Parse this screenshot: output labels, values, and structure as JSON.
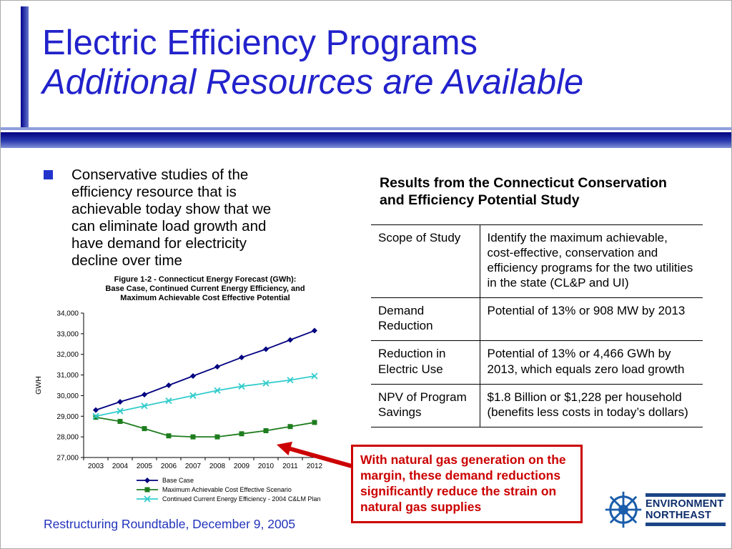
{
  "slide": {
    "title_line1": "Electric Efficiency Programs",
    "title_line2": "Additional Resources are Available",
    "bullet_text": "Conservative studies of the efficiency resource that is achievable today show that we can eliminate load growth and have demand for electricity decline over time",
    "footer": "Restructuring Roundtable, December 9, 2005"
  },
  "results_table": {
    "heading": "Results from the Connecticut Conservation and Efficiency Potential Study",
    "rows": [
      {
        "label": "Scope of Study",
        "value": "Identify the maximum achievable, cost-effective, conservation and efficiency programs for the two utilities in the state (CL&P and UI)"
      },
      {
        "label": "Demand Reduction",
        "value": "Potential of 13% or 908 MW by 2013"
      },
      {
        "label": "Reduction in Electric Use",
        "value": "Potential of 13% or 4,466 GWh by 2013, which equals zero load growth"
      },
      {
        "label": "NPV of Program Savings",
        "value": "$1.8 Billion or $1,228 per household (benefits less costs in today’s dollars)"
      }
    ]
  },
  "callout": {
    "text": "With natural gas generation on the margin, these demand reductions significantly reduce the strain on natural gas supplies"
  },
  "logo": {
    "line1": "ENVIRONMENT",
    "line2": "NORTHEAST"
  },
  "colors": {
    "title_blue": "#2222cc",
    "accent_red": "#cc0000",
    "footer_blue": "#2233bb",
    "logo_navy": "#0d2d6b"
  },
  "chart_data": {
    "type": "line",
    "title": "Figure 1-2 - Connecticut Energy Forecast (GWh): Base Case, Continued Current Energy Efficiency, and Maximum Achievable Cost Effective Potential",
    "title_lines": [
      "Figure 1-2 - Connecticut Energy Forecast (GWh):",
      "Base Case, Continued Current Energy Efficiency, and",
      "Maximum Achievable Cost Effective Potential"
    ],
    "ylabel": "GWH",
    "xlabel": "",
    "x": [
      2003,
      2004,
      2005,
      2006,
      2007,
      2008,
      2009,
      2010,
      2011,
      2012
    ],
    "ylim": [
      27000,
      34000
    ],
    "ytick_step": 1000,
    "grid": false,
    "legend_position": "bottom",
    "series": [
      {
        "name": "Base Case",
        "marker": "diamond",
        "color": "#000080",
        "values": [
          29300,
          29700,
          30050,
          30500,
          30950,
          31400,
          31850,
          32250,
          32700,
          33150
        ]
      },
      {
        "name": "Maximum Achievable Cost Effective Scenario",
        "marker": "square",
        "color": "#1e7d1e",
        "values": [
          28950,
          28750,
          28400,
          28050,
          28000,
          28000,
          28150,
          28300,
          28500,
          28700
        ]
      },
      {
        "name": "Continued Current Energy Efficiency - 2004 C&LM Plan",
        "marker": "x",
        "color": "#33cccc",
        "values": [
          29000,
          29250,
          29500,
          29750,
          30000,
          30250,
          30450,
          30600,
          30750,
          30950
        ]
      }
    ]
  }
}
